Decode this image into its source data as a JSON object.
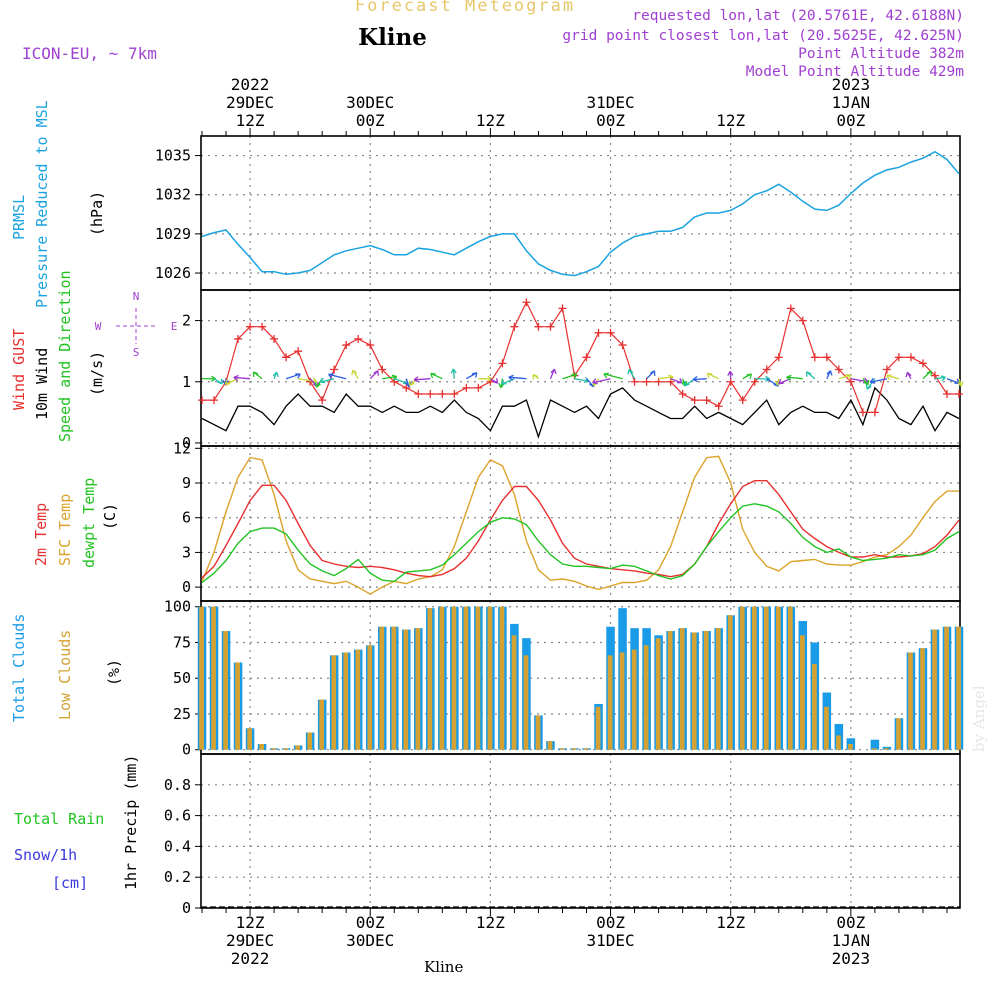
{
  "header": {
    "title": "Forecast Meteogram",
    "location": "Kline",
    "model": "ICON-EU, ~ 7km",
    "meta_lines": [
      "requested lon,lat (20.5761E, 42.6188N)",
      "grid point closest lon,lat (20.5625E, 42.625N)",
      "Point Altitude 382m",
      "Model Point Altitude 429m"
    ],
    "footer_location": "Kline",
    "credit": "by Angel"
  },
  "colors": {
    "pressure": "#1aa3e0",
    "gust": "#e83030",
    "wind": "#000000",
    "sfc_temp": "#dba32a",
    "temp2m": "#e83030",
    "dewpt": "#22c322",
    "total_clouds": "#1a9be8",
    "low_clouds": "#d4a233",
    "rain": "#22c322",
    "snow": "#3a3ae0",
    "meta": "#a040d0",
    "title": "#e8c76a"
  },
  "chart_data": [
    {
      "type": "line",
      "panel": "pressure",
      "ylabels": [
        "PRMSL",
        "Pressure Reduced to MSL"
      ],
      "unit": "(hPa)",
      "ylim": [
        1024.7,
        1036.5
      ],
      "yticks": [
        1026,
        1029,
        1032,
        1035
      ],
      "x_hours": [
        0,
        1,
        2,
        3,
        4,
        5,
        6,
        7,
        8,
        9,
        10,
        11,
        12,
        13,
        14,
        15,
        16,
        17,
        18,
        19,
        20,
        21,
        22,
        23,
        24,
        25,
        26,
        27,
        28,
        29,
        30,
        31,
        32,
        33,
        34,
        35,
        36,
        37,
        38,
        39,
        40,
        41,
        42,
        43,
        44,
        45,
        46,
        47,
        48,
        49,
        50,
        51,
        52,
        53,
        54,
        55,
        56,
        57,
        58,
        59,
        60,
        61,
        62,
        63
      ],
      "series": [
        {
          "values": [
            1028.8,
            1029.1,
            1029.3,
            1028.2,
            1027.2,
            1026.1,
            1026.1,
            1025.9,
            1026.0,
            1026.2,
            1026.8,
            1027.4,
            1027.7,
            1027.9,
            1028.1,
            1027.8,
            1027.4,
            1027.4,
            1027.9,
            1027.8,
            1027.6,
            1027.4,
            1027.9,
            1028.4,
            1028.8,
            1029.0,
            1029.0,
            1027.7,
            1026.7,
            1026.2,
            1025.9,
            1025.8,
            1026.1,
            1026.5,
            1027.6,
            1028.3,
            1028.8,
            1029.0,
            1029.2,
            1029.2,
            1029.5,
            1030.3,
            1030.6,
            1030.6,
            1030.8,
            1031.3,
            1032.0,
            1032.3,
            1032.8,
            1032.2,
            1031.5,
            1030.9,
            1030.8,
            1031.2,
            1032.1,
            1032.9,
            1033.5,
            1033.9,
            1034.1,
            1034.5,
            1034.8,
            1035.3,
            1034.7,
            1033.6
          ]
        }
      ]
    },
    {
      "type": "line",
      "panel": "wind",
      "ylabels": [
        "Wind GUST",
        "10m Wind",
        "Speed and Direction"
      ],
      "unit": "(m/s)",
      "compass": [
        "N",
        "W",
        "E",
        "S"
      ],
      "ylim": [
        -0.05,
        2.5
      ],
      "yticks": [
        0,
        1,
        2
      ],
      "x_hours": [
        0,
        1,
        2,
        3,
        4,
        5,
        6,
        7,
        8,
        9,
        10,
        11,
        12,
        13,
        14,
        15,
        16,
        17,
        18,
        19,
        20,
        21,
        22,
        23,
        24,
        25,
        26,
        27,
        28,
        29,
        30,
        31,
        32,
        33,
        34,
        35,
        36,
        37,
        38,
        39,
        40,
        41,
        42,
        43,
        44,
        45,
        46,
        47,
        48,
        49,
        50,
        51,
        52,
        53,
        54,
        55,
        56,
        57,
        58,
        59,
        60,
        61,
        62,
        63
      ],
      "series": [
        {
          "name": "Wind GUST",
          "values": [
            0.7,
            0.7,
            1.0,
            1.7,
            1.9,
            1.9,
            1.7,
            1.4,
            1.5,
            1.0,
            0.7,
            1.2,
            1.6,
            1.7,
            1.6,
            1.2,
            1.0,
            0.9,
            0.8,
            0.8,
            0.8,
            0.8,
            0.9,
            0.9,
            1.0,
            1.3,
            1.9,
            2.3,
            1.9,
            1.9,
            2.2,
            1.1,
            1.4,
            1.8,
            1.8,
            1.6,
            1.0,
            1.0,
            1.0,
            1.0,
            0.8,
            0.7,
            0.7,
            0.6,
            1.0,
            0.7,
            1.0,
            1.2,
            1.4,
            2.2,
            2.0,
            1.4,
            1.4,
            1.2,
            1.0,
            0.5,
            0.5,
            1.2,
            1.4,
            1.4,
            1.3,
            1.1,
            0.8,
            0.8
          ]
        },
        {
          "name": "10m Wind",
          "values": [
            0.4,
            0.3,
            0.2,
            0.6,
            0.6,
            0.5,
            0.3,
            0.6,
            0.8,
            0.6,
            0.6,
            0.5,
            0.8,
            0.6,
            0.6,
            0.5,
            0.6,
            0.5,
            0.5,
            0.6,
            0.5,
            0.7,
            0.5,
            0.4,
            0.2,
            0.6,
            0.6,
            0.7,
            0.1,
            0.7,
            0.6,
            0.5,
            0.6,
            0.4,
            0.8,
            0.9,
            0.7,
            0.6,
            0.5,
            0.4,
            0.4,
            0.6,
            0.4,
            0.5,
            0.4,
            0.3,
            0.5,
            0.7,
            0.3,
            0.5,
            0.6,
            0.5,
            0.5,
            0.4,
            0.7,
            0.3,
            0.9,
            0.7,
            0.4,
            0.3,
            0.6,
            0.2,
            0.5,
            0.4
          ]
        }
      ]
    },
    {
      "type": "line",
      "panel": "temperature",
      "ylabels": [
        "2m Temp",
        "SFC Temp",
        "dewpt Temp"
      ],
      "unit": "(C)",
      "ylim": [
        -1.2,
        12.2
      ],
      "yticks": [
        0,
        3,
        6,
        9,
        12
      ],
      "x_hours": [
        0,
        1,
        2,
        3,
        4,
        5,
        6,
        7,
        8,
        9,
        10,
        11,
        12,
        13,
        14,
        15,
        16,
        17,
        18,
        19,
        20,
        21,
        22,
        23,
        24,
        25,
        26,
        27,
        28,
        29,
        30,
        31,
        32,
        33,
        34,
        35,
        36,
        37,
        38,
        39,
        40,
        41,
        42,
        43,
        44,
        45,
        46,
        47,
        48,
        49,
        50,
        51,
        52,
        53,
        54,
        55,
        56,
        57,
        58,
        59,
        60,
        61,
        62,
        63
      ],
      "series": [
        {
          "name": "2m Temp",
          "values": [
            0.8,
            1.8,
            3.6,
            5.5,
            7.5,
            8.8,
            8.8,
            7.5,
            5.5,
            3.6,
            2.3,
            2.0,
            1.8,
            1.7,
            1.8,
            1.7,
            1.5,
            1.2,
            1.0,
            0.9,
            1.1,
            1.6,
            2.5,
            4.0,
            5.8,
            7.5,
            8.7,
            8.7,
            7.5,
            5.8,
            3.8,
            2.5,
            2.0,
            1.8,
            1.6,
            1.5,
            1.4,
            1.2,
            1.1,
            0.9,
            1.1,
            2.0,
            3.5,
            5.5,
            7.2,
            8.7,
            9.2,
            9.2,
            8.0,
            6.5,
            5.0,
            4.2,
            3.5,
            3.0,
            2.6,
            2.6,
            2.8,
            2.6,
            2.6,
            2.7,
            2.9,
            3.5,
            4.5,
            5.8
          ]
        },
        {
          "name": "SFC Temp",
          "values": [
            0.5,
            3.0,
            6.5,
            9.5,
            11.2,
            11.0,
            8.0,
            4.0,
            1.5,
            0.7,
            0.5,
            0.3,
            0.5,
            0.0,
            -0.6,
            0.0,
            0.5,
            0.3,
            0.7,
            0.9,
            1.5,
            3.5,
            6.5,
            9.5,
            11.0,
            10.5,
            8.0,
            4.0,
            1.5,
            0.6,
            0.7,
            0.5,
            0.1,
            -0.2,
            0.1,
            0.4,
            0.4,
            0.6,
            1.5,
            3.5,
            6.5,
            9.5,
            11.2,
            11.3,
            9.0,
            5.0,
            3.0,
            1.8,
            1.4,
            2.2,
            2.3,
            2.4,
            2.0,
            1.9,
            1.9,
            2.2,
            2.6,
            2.8,
            3.5,
            4.5,
            6.0,
            7.4,
            8.3,
            8.3
          ]
        },
        {
          "name": "dewpt Temp",
          "values": [
            0.4,
            1.2,
            2.3,
            3.8,
            4.8,
            5.1,
            5.1,
            4.6,
            3.2,
            2.0,
            1.4,
            1.0,
            1.6,
            2.4,
            1.2,
            0.6,
            0.5,
            1.3,
            1.4,
            1.5,
            1.9,
            2.8,
            3.8,
            4.8,
            5.6,
            6.0,
            5.9,
            5.4,
            4.0,
            2.8,
            2.0,
            1.8,
            1.8,
            1.7,
            1.6,
            1.9,
            1.8,
            1.4,
            1.0,
            0.7,
            1.0,
            2.0,
            3.5,
            4.8,
            6.0,
            7.0,
            7.2,
            7.0,
            6.5,
            5.5,
            4.3,
            3.5,
            3.0,
            3.3,
            2.6,
            2.3,
            2.4,
            2.5,
            2.8,
            2.7,
            2.8,
            3.2,
            4.2,
            4.8
          ]
        }
      ]
    },
    {
      "type": "bar",
      "panel": "clouds",
      "ylabels": [
        "Total Clouds",
        "Low Clouds"
      ],
      "unit": "(%)",
      "ylim": [
        -3,
        104
      ],
      "yticks": [
        0,
        25,
        50,
        75,
        100
      ],
      "x_hours": [
        0,
        1,
        2,
        3,
        4,
        5,
        6,
        7,
        8,
        9,
        10,
        11,
        12,
        13,
        14,
        15,
        16,
        17,
        18,
        19,
        20,
        21,
        22,
        23,
        24,
        25,
        26,
        27,
        28,
        29,
        30,
        31,
        32,
        33,
        34,
        35,
        36,
        37,
        38,
        39,
        40,
        41,
        42,
        43,
        44,
        45,
        46,
        47,
        48,
        49,
        50,
        51,
        52,
        53,
        54,
        55,
        56,
        57,
        58,
        59,
        60,
        61,
        62,
        63
      ],
      "series": [
        {
          "name": "Total Clouds",
          "values": [
            100,
            100,
            83,
            61,
            15,
            4,
            1,
            1,
            3,
            12,
            35,
            66,
            68,
            70,
            73,
            86,
            86,
            84,
            85,
            99,
            100,
            100,
            100,
            100,
            100,
            100,
            88,
            78,
            24,
            6,
            1,
            1,
            1,
            32,
            86,
            99,
            85,
            85,
            80,
            83,
            85,
            82,
            83,
            85,
            94,
            100,
            100,
            100,
            100,
            100,
            90,
            75,
            40,
            18,
            8,
            0,
            7,
            2,
            22,
            68,
            71,
            84,
            86,
            86
          ]
        },
        {
          "name": "Low Clouds",
          "values": [
            100,
            100,
            83,
            61,
            15,
            4,
            1,
            1,
            3,
            12,
            35,
            66,
            68,
            70,
            73,
            86,
            86,
            84,
            85,
            99,
            100,
            100,
            100,
            100,
            100,
            100,
            80,
            66,
            24,
            6,
            1,
            1,
            1,
            30,
            66,
            68,
            70,
            73,
            78,
            83,
            85,
            82,
            83,
            85,
            94,
            100,
            100,
            100,
            100,
            100,
            80,
            60,
            30,
            10,
            4,
            0,
            1,
            1,
            22,
            68,
            71,
            84,
            86,
            86
          ]
        }
      ]
    },
    {
      "type": "bar",
      "panel": "precip",
      "ylabels": [
        "1hr Precip (mm)"
      ],
      "legend": [
        "Total Rain",
        "Snow/1h",
        "[cm]"
      ],
      "ylim": [
        0,
        1.0
      ],
      "yticks": [
        0,
        0.2,
        0.4,
        0.6,
        0.8
      ],
      "x_hours": [
        0,
        1,
        2,
        3,
        4,
        5,
        6,
        7,
        8,
        9,
        10,
        11,
        12,
        13,
        14,
        15,
        16,
        17,
        18,
        19,
        20,
        21,
        22,
        23,
        24,
        25,
        26,
        27,
        28,
        29,
        30,
        31,
        32,
        33,
        34,
        35,
        36,
        37,
        38,
        39,
        40,
        41,
        42,
        43,
        44,
        45,
        46,
        47,
        48,
        49,
        50,
        51,
        52,
        53,
        54,
        55,
        56,
        57,
        58,
        59,
        60,
        61,
        62,
        63
      ],
      "series": [
        {
          "name": "Total Rain",
          "values": [
            0,
            0,
            0,
            0,
            0,
            0,
            0,
            0,
            0,
            0,
            0,
            0,
            0,
            0,
            0,
            0,
            0,
            0,
            0,
            0,
            0,
            0,
            0,
            0,
            0,
            0,
            0,
            0,
            0,
            0,
            0,
            0,
            0,
            0,
            0,
            0,
            0,
            0,
            0,
            0,
            0,
            0,
            0,
            0,
            0,
            0,
            0,
            0,
            0,
            0,
            0,
            0,
            0,
            0,
            0,
            0,
            0,
            0,
            0,
            0,
            0,
            0,
            0,
            0
          ]
        }
      ]
    }
  ],
  "time_axis": {
    "top_labels": [
      {
        "lines": [
          "2022",
          "29DEC",
          "12Z"
        ],
        "hour": 4
      },
      {
        "lines": [
          "30DEC",
          "00Z"
        ],
        "hour": 14
      },
      {
        "lines": [
          "12Z"
        ],
        "hour": 24
      },
      {
        "lines": [
          "31DEC",
          "00Z"
        ],
        "hour": 34
      },
      {
        "lines": [
          "12Z"
        ],
        "hour": 44
      },
      {
        "lines": [
          "2023",
          "1JAN",
          "00Z"
        ],
        "hour": 54
      }
    ],
    "bottom_labels": [
      {
        "lines": [
          "12Z",
          "29DEC",
          "2022"
        ],
        "hour": 4
      },
      {
        "lines": [
          "00Z",
          "30DEC"
        ],
        "hour": 14
      },
      {
        "lines": [
          "12Z"
        ],
        "hour": 24
      },
      {
        "lines": [
          "00Z",
          "31DEC"
        ],
        "hour": 34
      },
      {
        "lines": [
          "12Z"
        ],
        "hour": 44
      },
      {
        "lines": [
          "00Z",
          "1JAN",
          "2023"
        ],
        "hour": 54
      }
    ]
  }
}
